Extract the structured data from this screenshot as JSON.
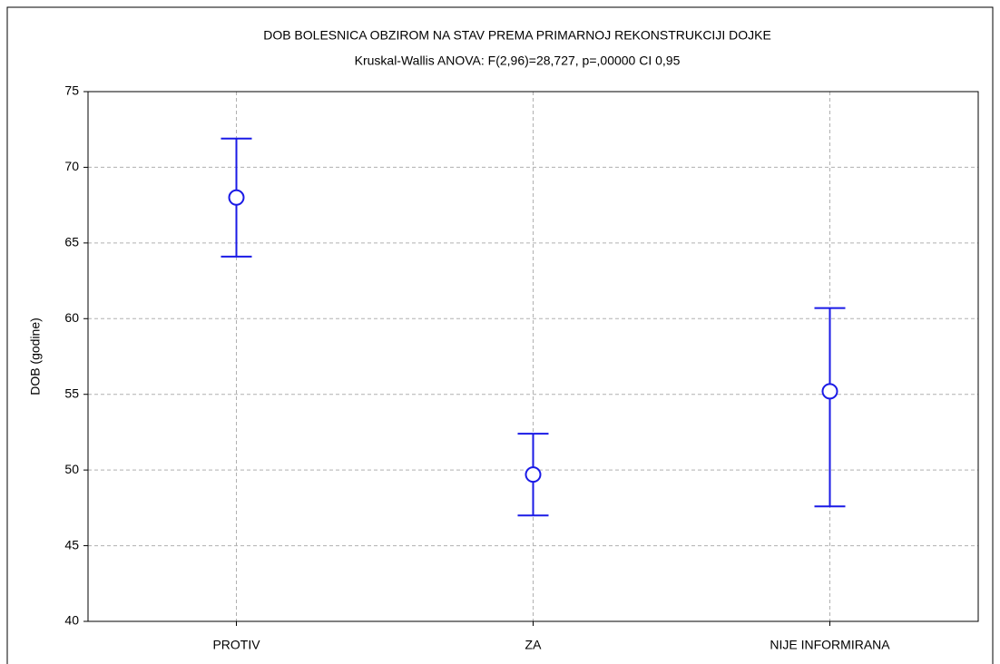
{
  "chart_data": {
    "type": "errorbar",
    "title": "DOB BOLESNICA OBZIROM NA STAV PREMA PRIMARNOJ REKONSTRUKCIJI DOJKE",
    "subtitle": "Kruskal-Wallis ANOVA: F(2,96)=28,727, p=,00000 CI 0,95",
    "y_label": "DOB (godine)",
    "categories": [
      "PROTIV",
      "ZA",
      "NIJE INFORMIRANA"
    ],
    "mean": [
      68.0,
      49.7,
      55.2
    ],
    "lower": [
      64.1,
      47.0,
      47.6
    ],
    "upper": [
      71.9,
      52.4,
      60.7
    ],
    "color": "#1a1ae6",
    "ylim": [
      40,
      75
    ],
    "yticks": [
      40,
      45,
      50,
      55,
      60,
      65,
      70,
      75
    ],
    "grid": true
  }
}
